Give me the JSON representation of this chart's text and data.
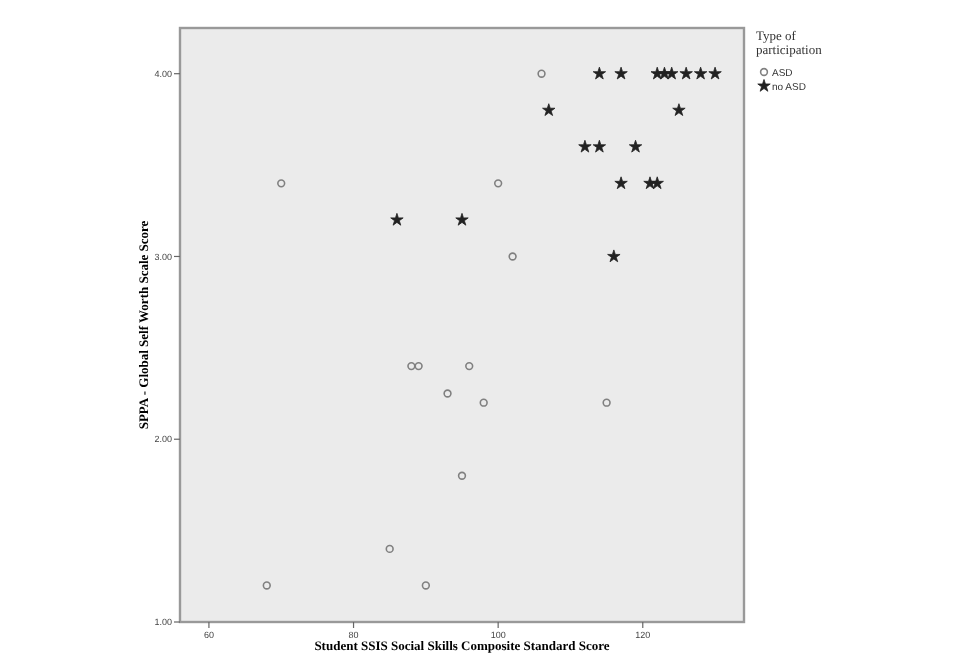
{
  "chart_data": {
    "type": "scatter",
    "xlabel": "Student SSIS Social Skills Composite Standard Score",
    "ylabel": "SPPA - Global Self Worth Scale Score",
    "legend_title": "Type of participation",
    "legend": "top right",
    "grid": false,
    "xlim": [
      56,
      134
    ],
    "xticks": [
      60,
      80,
      100,
      120
    ],
    "ylim": [
      1,
      4.25
    ],
    "yticks": [
      {
        "value": 1,
        "label": "1.00"
      },
      {
        "value": 2,
        "label": "2.00"
      },
      {
        "value": 3,
        "label": "3.00"
      },
      {
        "value": 4,
        "label": "4.00"
      }
    ],
    "series": [
      {
        "name": "ASD",
        "color": "#808080",
        "marker": "circle",
        "x": [
          106,
          70,
          100,
          102,
          88,
          89,
          96,
          93,
          98,
          115,
          95,
          85,
          68,
          90
        ],
        "values": [
          4,
          3.4,
          3.4,
          3,
          2.4,
          2.4,
          2.4,
          2.25,
          2.2,
          2.2,
          1.8,
          1.4,
          1.2,
          1.2
        ]
      },
      {
        "name": "no ASD",
        "color": "#222222",
        "marker": "star",
        "x": [
          114,
          117,
          122,
          123,
          124,
          126,
          128,
          130,
          107,
          125,
          112,
          114,
          119,
          117,
          121,
          122,
          86,
          95,
          116
        ],
        "values": [
          4,
          4,
          4,
          4,
          4,
          4,
          4,
          4,
          3.8,
          3.8,
          3.6,
          3.6,
          3.6,
          3.4,
          3.4,
          3.4,
          3.2,
          3.2,
          3
        ]
      }
    ]
  }
}
